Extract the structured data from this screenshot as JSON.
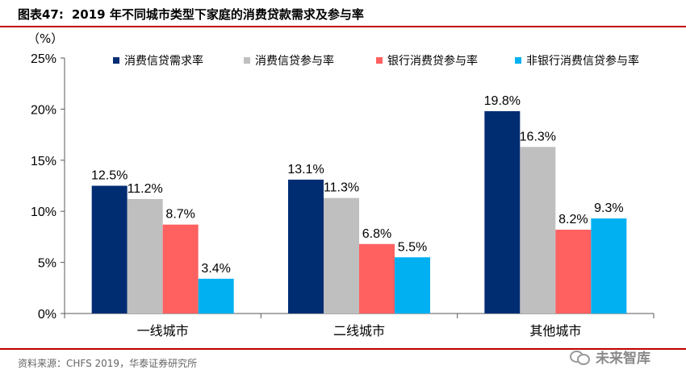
{
  "header": {
    "figure_num": "图表47:",
    "title": "2019 年不同城市类型下家庭的消费贷款需求及参与率"
  },
  "chart_data": {
    "type": "bar",
    "unit_label": "（%）",
    "categories": [
      "一线城市",
      "二线城市",
      "其他城市"
    ],
    "series": [
      {
        "name": "消费信贷需求率",
        "color": "#002d72",
        "values": [
          12.5,
          13.1,
          19.8
        ],
        "labels": [
          "12.5%",
          "13.1%",
          "19.8%"
        ]
      },
      {
        "name": "消费信贷参与率",
        "color": "#bfbfbf",
        "values": [
          11.2,
          11.3,
          16.3
        ],
        "labels": [
          "11.2%",
          "11.3%",
          "16.3%"
        ]
      },
      {
        "name": "银行消费贷参与率",
        "color": "#ff6161",
        "values": [
          8.7,
          6.8,
          8.2
        ],
        "labels": [
          "8.7%",
          "6.8%",
          "8.2%"
        ]
      },
      {
        "name": "非银行消费信贷参与率",
        "color": "#00b0f0",
        "values": [
          3.4,
          5.5,
          9.3
        ],
        "labels": [
          "3.4%",
          "5.5%",
          "9.3%"
        ]
      }
    ],
    "ylim": [
      0,
      25
    ],
    "yticks": [
      0,
      5,
      10,
      15,
      20,
      25
    ],
    "ytick_labels": [
      "0%",
      "5%",
      "10%",
      "15%",
      "20%",
      "25%"
    ],
    "grid": false,
    "legend_position": "top"
  },
  "footer": {
    "source": "资料来源：CHFS 2019，华泰证券研究所",
    "watermark": "未来智库"
  }
}
